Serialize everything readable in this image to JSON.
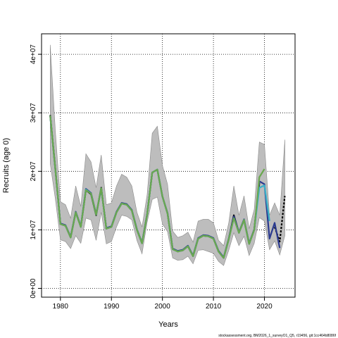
{
  "chart_data": {
    "type": "line",
    "title": "",
    "xlabel": "Years",
    "ylabel": "Recruits (age 0)",
    "xlim": [
      1976.3,
      2026.0
    ],
    "ylim": [
      -1500000,
      43500000
    ],
    "x_ticks": [
      1980,
      1990,
      2000,
      2010,
      2020
    ],
    "x_tick_labels": [
      "1980",
      "1990",
      "2000",
      "2010",
      "2020"
    ],
    "y_ticks": [
      0,
      10000000,
      20000000,
      30000000,
      40000000
    ],
    "y_tick_labels": [
      "0e+00",
      "1e+07",
      "2e+07",
      "3e+07",
      "4e+07"
    ],
    "grid": true,
    "footer": "stockassessment.org, BM2026_1_surveyO1_Q5, r19456, git:1cc464b8086f",
    "years": [
      1978,
      1979,
      1980,
      1981,
      1982,
      1983,
      1984,
      1985,
      1986,
      1987,
      1988,
      1989,
      1990,
      1991,
      1992,
      1993,
      1994,
      1995,
      1996,
      1997,
      1998,
      1999,
      2000,
      2001,
      2002,
      2003,
      2004,
      2005,
      2006,
      2007,
      2008,
      2009,
      2010,
      2011,
      2012,
      2013,
      2014,
      2015,
      2016,
      2017,
      2018,
      2019,
      2020,
      2021,
      2022,
      2023,
      2024
    ],
    "band": {
      "years": [
        1978,
        1979,
        1980,
        1981,
        1982,
        1983,
        1984,
        1985,
        1986,
        1987,
        1988,
        1989,
        1990,
        1991,
        1992,
        1993,
        1994,
        1995,
        1996,
        1997,
        1998,
        1999,
        2000,
        2001,
        2002,
        2003,
        2004,
        2005,
        2006,
        2007,
        2008,
        2009,
        2010,
        2011,
        2012,
        2013,
        2014,
        2015,
        2016,
        2017,
        2018,
        2019,
        2020,
        2021,
        2022,
        2023,
        2024
      ],
      "upper": [
        41600000,
        27000000,
        14800000,
        14300000,
        12000000,
        17500000,
        14000000,
        23000000,
        21600000,
        17200000,
        22800000,
        14300000,
        14600000,
        17500000,
        19500000,
        19000000,
        17500000,
        13000000,
        10500000,
        16000000,
        26500000,
        27700000,
        21000000,
        17800000,
        9800000,
        8700000,
        9000000,
        9600000,
        7900000,
        11500000,
        11800000,
        11800000,
        11200000,
        8200000,
        7300000,
        11200000,
        17500000,
        12500000,
        15800000,
        10200000,
        13500000,
        25000000,
        24600000,
        12500000,
        14600000,
        12500000,
        25400000
      ],
      "lower": [
        21300000,
        15300000,
        8300000,
        8000000,
        6800000,
        9000000,
        7700000,
        12000000,
        11700000,
        8200000,
        13000000,
        7600000,
        8000000,
        10500000,
        12500000,
        12300000,
        11700000,
        8200000,
        5900000,
        11300000,
        15200000,
        15600000,
        11000000,
        9700000,
        5200000,
        4800000,
        4900000,
        5500000,
        4200000,
        6500000,
        6600000,
        6300000,
        6000000,
        4600000,
        3900000,
        6500000,
        9500000,
        7300000,
        8900000,
        5600000,
        7700000,
        12100000,
        11500000,
        6600000,
        8100000,
        5700000,
        9000000
      ]
    },
    "series": [
      {
        "color": "#000000",
        "dashed": false,
        "x": [
          1978,
          1979,
          1980,
          1981,
          1982,
          1983,
          1984,
          1985,
          1986,
          1987,
          1988,
          1989,
          1990,
          1991,
          1992,
          1993,
          1994,
          1995,
          1996,
          1997,
          1998,
          1999,
          2000,
          2001,
          2002,
          2003,
          2004,
          2005,
          2006,
          2007,
          2008,
          2009,
          2010,
          2011,
          2012,
          2013,
          2014,
          2015,
          2016,
          2017,
          2018,
          2019
        ],
        "y": [
          29600000,
          20500000,
          11000000,
          10700000,
          8700000,
          13000000,
          10500000,
          16800000,
          16100000,
          12500000,
          17200000,
          10200000,
          10500000,
          13000000,
          14500000,
          14300000,
          13300000,
          10000000,
          7700000,
          12600000,
          19800000,
          20300000,
          15700000,
          12800000,
          6700000,
          6300000,
          6500000,
          7200000,
          5500000,
          8500000,
          9000000,
          8900000,
          8500000,
          6300000,
          5200000,
          8400000,
          12500000,
          9500000,
          11700000,
          7600000,
          10000000,
          18000000
        ]
      },
      {
        "color": "#000000",
        "dashed": true,
        "x": [
          2022,
          2023,
          2024
        ],
        "y": [
          10500000,
          8000000,
          15800000
        ]
      },
      {
        "color": "#2b3a8f",
        "dashed": false,
        "x": [
          1978,
          1979,
          1980,
          1981,
          1982,
          1983,
          1984,
          1985,
          1986,
          1987,
          1988,
          1989,
          1990,
          1991,
          1992,
          1993,
          1994,
          1995,
          1996,
          1997,
          1998,
          1999,
          2000,
          2001,
          2002,
          2003,
          2004,
          2005,
          2006,
          2007,
          2008,
          2009,
          2010,
          2011,
          2012,
          2013,
          2014,
          2015,
          2016,
          2017,
          2018,
          2019,
          2020,
          2021,
          2022,
          2023
        ],
        "y": [
          29400000,
          20300000,
          11100000,
          10800000,
          8800000,
          13100000,
          10600000,
          17000000,
          16300000,
          12700000,
          17000000,
          10300000,
          10600000,
          13100000,
          14600000,
          14400000,
          13400000,
          10100000,
          7800000,
          12700000,
          19800000,
          20300000,
          15700000,
          12900000,
          6800000,
          6400000,
          6600000,
          7300000,
          5600000,
          8600000,
          9100000,
          9000000,
          8600000,
          6400000,
          5300000,
          8500000,
          12300000,
          9600000,
          11800000,
          7700000,
          10100000,
          18300000,
          17800000,
          8500000,
          11200000,
          6900000
        ]
      },
      {
        "color": "#3ab0c8",
        "dashed": false,
        "x": [
          1978,
          1979,
          1980,
          1981,
          1982,
          1983,
          1984,
          1985,
          1986,
          1987,
          1988,
          1989,
          1990,
          1991,
          1992,
          1993,
          1994,
          1995,
          1996,
          1997,
          1998,
          1999,
          2000,
          2001,
          2002,
          2003,
          2004,
          2005,
          2006,
          2007,
          2008,
          2009,
          2010,
          2011,
          2012,
          2013,
          2014,
          2015,
          2016,
          2017,
          2018,
          2019,
          2020,
          2021
        ],
        "y": [
          29500000,
          20400000,
          11000000,
          10700000,
          8700000,
          13000000,
          10500000,
          16900000,
          16200000,
          12600000,
          17100000,
          10200000,
          10500000,
          13000000,
          14500000,
          14300000,
          13300000,
          10000000,
          7700000,
          12600000,
          19800000,
          20300000,
          15700000,
          12800000,
          6700000,
          6300000,
          6500000,
          7200000,
          5500000,
          8500000,
          9000000,
          8900000,
          8500000,
          6300000,
          5200000,
          8400000,
          12000000,
          9500000,
          11700000,
          7600000,
          10000000,
          17200000,
          17600000,
          11500000
        ]
      },
      {
        "color": "#6aa84f",
        "dashed": false,
        "x": [
          1978,
          1979,
          1980,
          1981,
          1982,
          1983,
          1984,
          1985,
          1986,
          1987,
          1988,
          1989,
          1990,
          1991,
          1992,
          1993,
          1994,
          1995,
          1996,
          1997,
          1998,
          1999,
          2000,
          2001,
          2002,
          2003,
          2004,
          2005,
          2006,
          2007,
          2008,
          2009,
          2010,
          2011,
          2012,
          2013,
          2014,
          2015,
          2016,
          2017,
          2018,
          2019,
          2020
        ],
        "y": [
          29500000,
          20400000,
          11000000,
          10700000,
          8700000,
          13000000,
          10500000,
          16800000,
          16200000,
          12600000,
          17100000,
          10200000,
          10500000,
          13000000,
          14500000,
          14300000,
          13300000,
          10000000,
          7700000,
          12600000,
          19800000,
          20300000,
          15700000,
          12800000,
          6700000,
          6300000,
          6500000,
          7200000,
          5500000,
          8500000,
          9000000,
          8900000,
          8500000,
          6300000,
          5200000,
          8400000,
          12000000,
          9500000,
          11700000,
          7600000,
          10000000,
          19000000,
          20400000
        ]
      }
    ]
  }
}
